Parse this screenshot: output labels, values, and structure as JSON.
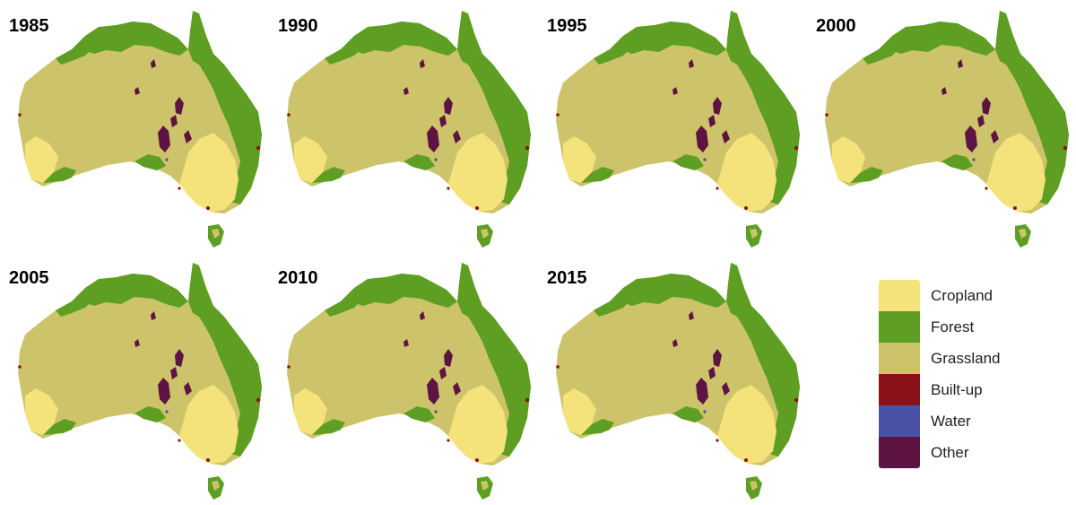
{
  "colors": {
    "cropland": "#f4e37a",
    "forest": "#5e9e22",
    "grassland": "#cdc36b",
    "builtup": "#8b1218",
    "water": "#4a52a6",
    "other": "#5e1442"
  },
  "panels": [
    {
      "year": "1985"
    },
    {
      "year": "1990"
    },
    {
      "year": "1995"
    },
    {
      "year": "2000"
    },
    {
      "year": "2005"
    },
    {
      "year": "2010"
    },
    {
      "year": "2015"
    }
  ],
  "legend": {
    "items": [
      {
        "label": "Cropland",
        "key": "cropland"
      },
      {
        "label": "Forest",
        "key": "forest"
      },
      {
        "label": "Grassland",
        "key": "grassland"
      },
      {
        "label": "Built-up",
        "key": "builtup"
      },
      {
        "label": "Water",
        "key": "water"
      },
      {
        "label": "Other",
        "key": "other"
      }
    ]
  }
}
